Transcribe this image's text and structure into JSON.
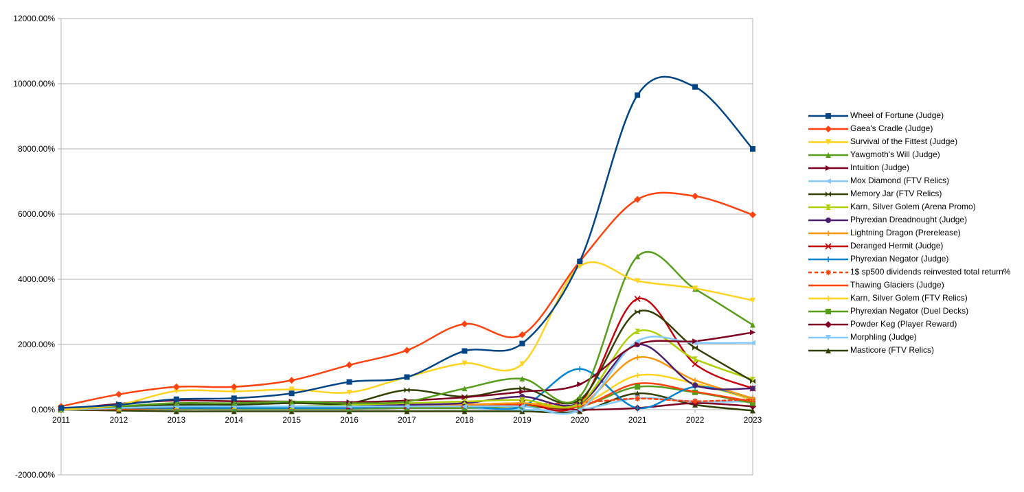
{
  "chart_data": {
    "type": "line",
    "title": "",
    "xlabel": "",
    "ylabel": "",
    "x": [
      "2011",
      "2012",
      "2013",
      "2014",
      "2015",
      "2016",
      "2017",
      "2018",
      "2019",
      "2020",
      "2021",
      "2022",
      "2023"
    ],
    "ylim": [
      -2000,
      12000
    ],
    "y_ticks": [
      "12000.00%",
      "10000.00%",
      "8000.00%",
      "6000.00%",
      "4000.00%",
      "2000.00%",
      "0.00%",
      "-2000.00%"
    ],
    "y_tick_values": [
      12000,
      10000,
      8000,
      6000,
      4000,
      2000,
      0,
      -2000
    ],
    "grid": "horizontal",
    "smoothed": true,
    "legend_position": "right",
    "series": [
      {
        "name": "Wheel of Fortune (Judge)",
        "color": "#004586",
        "marker": "square",
        "values": [
          50,
          150,
          320,
          350,
          500,
          850,
          1000,
          1800,
          2030,
          4550,
          9650,
          9900,
          8000
        ]
      },
      {
        "name": "Gaea's Cradle (Judge)",
        "color": "#ff420e",
        "marker": "diamond",
        "values": [
          100,
          470,
          700,
          700,
          900,
          1370,
          1820,
          2630,
          2300,
          4550,
          6450,
          6550,
          5980
        ]
      },
      {
        "name": "Survival of the Fittest (Judge)",
        "color": "#ffd320",
        "marker": "triangle-down",
        "values": [
          0,
          150,
          570,
          560,
          620,
          530,
          1000,
          1420,
          1400,
          4400,
          3950,
          3720,
          3350
        ]
      },
      {
        "name": "Yawgmoth's Will (Judge)",
        "color": "#579d1c",
        "marker": "triangle-up",
        "values": [
          0,
          100,
          200,
          200,
          250,
          200,
          250,
          650,
          950,
          400,
          4700,
          3700,
          2600
        ]
      },
      {
        "name": "Intuition (Judge)",
        "color": "#7e0021",
        "marker": "triangle-right",
        "values": [
          0,
          180,
          280,
          260,
          250,
          230,
          280,
          380,
          550,
          780,
          2000,
          2100,
          2370
        ]
      },
      {
        "name": "Mox Diamond (FTV Relics)",
        "color": "#83caff",
        "marker": "triangle-left",
        "values": [
          0,
          50,
          100,
          100,
          100,
          100,
          100,
          100,
          100,
          0,
          2100,
          2050,
          2050
        ]
      },
      {
        "name": "Memory Jar (FTV Relics)",
        "color": "#314004",
        "marker": "bowtie",
        "values": [
          0,
          100,
          150,
          150,
          200,
          200,
          600,
          400,
          650,
          300,
          3000,
          1900,
          870
        ]
      },
      {
        "name": "Karn, Silver Golem (Arena Promo)",
        "color": "#aecf00",
        "marker": "hourglass",
        "values": [
          0,
          50,
          100,
          100,
          100,
          150,
          200,
          250,
          300,
          200,
          2400,
          1550,
          920
        ]
      },
      {
        "name": "Phyrexian Dreadnought (Judge)",
        "color": "#4b1f6f",
        "marker": "circle",
        "values": [
          0,
          50,
          100,
          100,
          100,
          100,
          150,
          200,
          400,
          200,
          2000,
          750,
          650
        ]
      },
      {
        "name": "Lightning Dragon (Prerelease)",
        "color": "#ff950e",
        "marker": "plus",
        "values": [
          0,
          50,
          100,
          100,
          100,
          100,
          150,
          150,
          200,
          150,
          1600,
          900,
          350
        ]
      },
      {
        "name": "Deranged Hermit (Judge)",
        "color": "#c5000b",
        "marker": "x",
        "values": [
          0,
          50,
          100,
          100,
          100,
          100,
          100,
          150,
          200,
          200,
          3400,
          1400,
          650
        ]
      },
      {
        "name": "Phyrexian Negator (Judge)",
        "color": "#0084d1",
        "marker": "plus",
        "values": [
          0,
          50,
          50,
          50,
          50,
          50,
          100,
          100,
          100,
          1250,
          50,
          700,
          350
        ]
      },
      {
        "name": "1$ sp500 dividends reinvested total return%",
        "color": "#ff420e",
        "marker": "asterisk",
        "dashed": true,
        "values": [
          0,
          16,
          50,
          70,
          70,
          80,
          120,
          100,
          160,
          210,
          340,
          260,
          320
        ]
      },
      {
        "name": "Thawing Glaciers (Judge)",
        "color": "#ff420e",
        "marker": "dash",
        "values": [
          0,
          30,
          50,
          50,
          80,
          100,
          100,
          100,
          150,
          100,
          800,
          550,
          250
        ]
      },
      {
        "name": "Karn, Silver Golem (FTV Relics)",
        "color": "#ffd320",
        "marker": "plus",
        "values": [
          0,
          50,
          80,
          80,
          100,
          100,
          100,
          150,
          200,
          150,
          1050,
          800,
          300
        ]
      },
      {
        "name": "Phyrexian Negator (Duel Decks)",
        "color": "#579d1c",
        "marker": "square",
        "values": [
          0,
          20,
          30,
          30,
          30,
          30,
          50,
          50,
          100,
          100,
          700,
          530,
          200
        ]
      },
      {
        "name": "Powder Keg (Player Reward)",
        "color": "#7e0021",
        "marker": "diamond",
        "values": [
          0,
          30,
          30,
          30,
          30,
          30,
          50,
          100,
          100,
          0,
          50,
          200,
          100
        ]
      },
      {
        "name": "Morphling (Judge)",
        "color": "#83caff",
        "marker": "triangle-down",
        "values": [
          0,
          20,
          50,
          30,
          30,
          50,
          50,
          50,
          0,
          0,
          350,
          250,
          250
        ]
      },
      {
        "name": "Masticore (FTV Relics)",
        "color": "#314004",
        "marker": "triangle-up",
        "values": [
          0,
          -30,
          -50,
          -50,
          -50,
          -50,
          -50,
          -50,
          -50,
          -50,
          500,
          150,
          -30
        ]
      }
    ]
  }
}
